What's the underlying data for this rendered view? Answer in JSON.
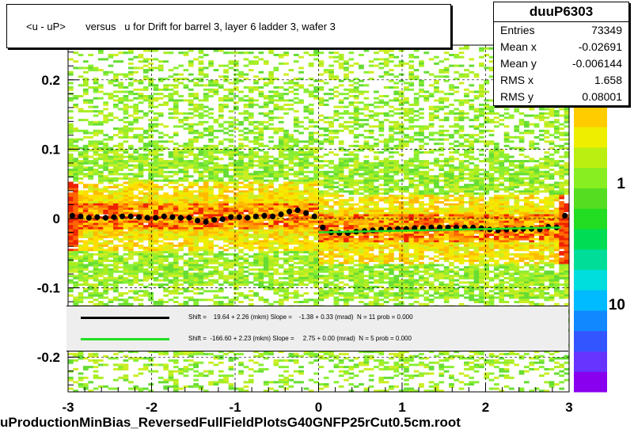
{
  "title": "<u - uP>       versus   u for Drift for barrel 3, layer 6 ladder 3, wafer 3",
  "x_title": "uProductionMinBias_ReversedFullFieldPlotsG40GNFP25rCut0.5cm.root",
  "stats": {
    "name": "duuP6303",
    "rows": [
      {
        "label": "Entries",
        "value": "73349"
      },
      {
        "label": "Mean x",
        "value": "-0.02691"
      },
      {
        "label": "Mean y",
        "value": "-0.006144"
      },
      {
        "label": "RMS x",
        "value": "1.658"
      },
      {
        "label": "RMS y",
        "value": "0.08001"
      }
    ]
  },
  "legend": [
    {
      "color": "#000000",
      "text": "Shift =    19.64 + 2.26 (mkm) Slope =    -1.38 + 0.33 (mrad)  N = 11 prob = 0.000"
    },
    {
      "color": "#22dd22",
      "text": "Shift =  -166.60 + 2.23 (mkm) Slope =     2.75 + 0.00 (mrad)  N = 5 prob = 0.000"
    }
  ],
  "chart_data": {
    "type": "heatmap",
    "xlim": [
      -3,
      3
    ],
    "ylim": [
      -0.25,
      0.25
    ],
    "x_ticks": [
      "-3",
      "-2",
      "-1",
      "0",
      "1",
      "2",
      "3"
    ],
    "y_ticks": [
      "-0.2",
      "-0.1",
      "0",
      "0.1",
      "0.2"
    ],
    "colorbar_ticks": [
      "10",
      "1",
      "10"
    ],
    "grid": true,
    "profile_points": {
      "x": [
        -2.95,
        -2.85,
        -2.75,
        -2.65,
        -2.55,
        -2.45,
        -2.35,
        -2.25,
        -2.15,
        -2.05,
        -1.95,
        -1.85,
        -1.75,
        -1.65,
        -1.55,
        -1.45,
        -1.35,
        -1.25,
        -1.15,
        -1.05,
        -0.95,
        -0.85,
        -0.75,
        -0.65,
        -0.55,
        -0.45,
        -0.35,
        -0.25,
        -0.15,
        -0.05,
        0.05,
        0.15,
        0.25,
        0.35,
        0.45,
        0.55,
        0.65,
        0.75,
        0.85,
        0.95,
        1.05,
        1.15,
        1.25,
        1.35,
        1.45,
        1.55,
        1.65,
        1.75,
        1.85,
        1.95,
        2.05,
        2.15,
        2.25,
        2.35,
        2.45,
        2.55,
        2.65,
        2.75,
        2.85,
        2.95
      ],
      "y": [
        0.004,
        0.003,
        0.001,
        0.002,
        0.001,
        0.002,
        0.003,
        0.003,
        0.002,
        0.001,
        0.001,
        0.003,
        0.002,
        0.001,
        0.001,
        -0.003,
        -0.005,
        -0.002,
        -0.001,
        0.002,
        0.002,
        0.001,
        0.003,
        0.004,
        0.003,
        0.006,
        0.01,
        0.012,
        0.008,
        0.003,
        -0.013,
        -0.02,
        -0.021,
        -0.021,
        -0.019,
        -0.018,
        -0.017,
        -0.016,
        -0.016,
        -0.015,
        -0.015,
        -0.014,
        -0.014,
        -0.013,
        -0.013,
        -0.013,
        -0.013,
        -0.013,
        -0.013,
        -0.014,
        -0.016,
        -0.017,
        -0.016,
        -0.016,
        -0.015,
        -0.015,
        -0.016,
        -0.012,
        -0.013,
        0.004
      ]
    },
    "fit_line": {
      "x": [
        0.0,
        2.9
      ],
      "y": [
        -0.02,
        -0.013
      ]
    }
  }
}
